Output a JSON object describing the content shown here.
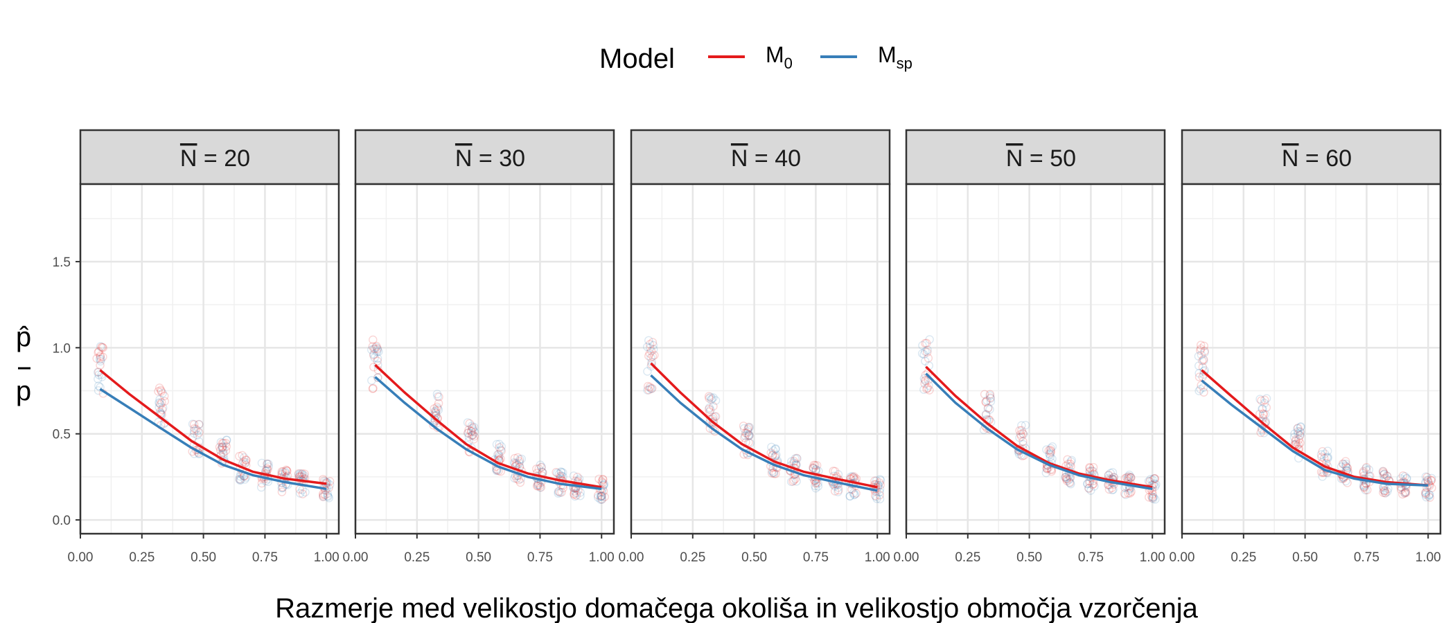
{
  "legend": {
    "title": "Model",
    "entries": [
      {
        "base": "M",
        "sub": "0",
        "color": "#e41a1c"
      },
      {
        "base": "M",
        "sub": "sp",
        "color": "#377eb8"
      }
    ]
  },
  "axes": {
    "xlabel": "Razmerje med velikostjo domačega okoliša in velikostjo območja vzorčenja",
    "ylabel_top": "p̂",
    "ylabel_bottom": "p"
  },
  "chart_data": {
    "type": "line",
    "facet_prefix": "N",
    "facets": [
      {
        "label": "= 20",
        "N": 20
      },
      {
        "label": "= 30",
        "N": 30
      },
      {
        "label": "= 40",
        "N": 40
      },
      {
        "label": "= 50",
        "N": 50
      },
      {
        "label": "= 60",
        "N": 60
      }
    ],
    "xlim": [
      0,
      1.05
    ],
    "ylim": [
      -0.08,
      1.95
    ],
    "x_ticks": [
      "0.00",
      "0.25",
      "0.50",
      "0.75",
      "1.00"
    ],
    "y_ticks": [
      "0.0",
      "0.5",
      "1.0",
      "1.5"
    ],
    "x": [
      0.08,
      0.2,
      0.33,
      0.45,
      0.58,
      0.7,
      0.83,
      1.0
    ],
    "series": [
      {
        "name": "M0",
        "color": "#e41a1c",
        "values_by_facet": [
          [
            0.87,
            0.73,
            0.59,
            0.46,
            0.35,
            0.28,
            0.24,
            0.21
          ],
          [
            0.9,
            0.74,
            0.58,
            0.44,
            0.33,
            0.27,
            0.23,
            0.19
          ],
          [
            0.91,
            0.74,
            0.57,
            0.44,
            0.34,
            0.28,
            0.24,
            0.19
          ],
          [
            0.89,
            0.72,
            0.56,
            0.43,
            0.33,
            0.27,
            0.23,
            0.19
          ],
          [
            0.87,
            0.72,
            0.56,
            0.42,
            0.31,
            0.25,
            0.22,
            0.2
          ]
        ]
      },
      {
        "name": "Msp",
        "color": "#377eb8",
        "values_by_facet": [
          [
            0.76,
            0.65,
            0.53,
            0.42,
            0.32,
            0.26,
            0.22,
            0.18
          ],
          [
            0.83,
            0.68,
            0.53,
            0.41,
            0.31,
            0.25,
            0.21,
            0.18
          ],
          [
            0.84,
            0.68,
            0.53,
            0.41,
            0.32,
            0.26,
            0.22,
            0.17
          ],
          [
            0.85,
            0.68,
            0.53,
            0.41,
            0.32,
            0.26,
            0.22,
            0.18
          ],
          [
            0.81,
            0.67,
            0.53,
            0.4,
            0.29,
            0.24,
            0.21,
            0.2
          ]
        ]
      }
    ],
    "scatter_x": [
      0.08,
      0.33,
      0.47,
      0.58,
      0.66,
      0.75,
      0.83,
      0.9,
      1.0
    ],
    "scatter_center": [
      [
        0.88,
        0.65,
        0.48,
        0.38,
        0.3,
        0.26,
        0.23,
        0.21,
        0.19
      ],
      [
        0.9,
        0.63,
        0.47,
        0.36,
        0.29,
        0.25,
        0.22,
        0.2,
        0.18
      ],
      [
        0.9,
        0.62,
        0.46,
        0.35,
        0.29,
        0.25,
        0.22,
        0.2,
        0.18
      ],
      [
        0.9,
        0.62,
        0.46,
        0.35,
        0.28,
        0.24,
        0.22,
        0.2,
        0.18
      ],
      [
        0.88,
        0.62,
        0.45,
        0.33,
        0.27,
        0.24,
        0.22,
        0.2,
        0.19
      ]
    ],
    "scatter_colors": [
      "#e41a1c",
      "#377eb8"
    ],
    "grid": true,
    "legend_position": "top"
  }
}
